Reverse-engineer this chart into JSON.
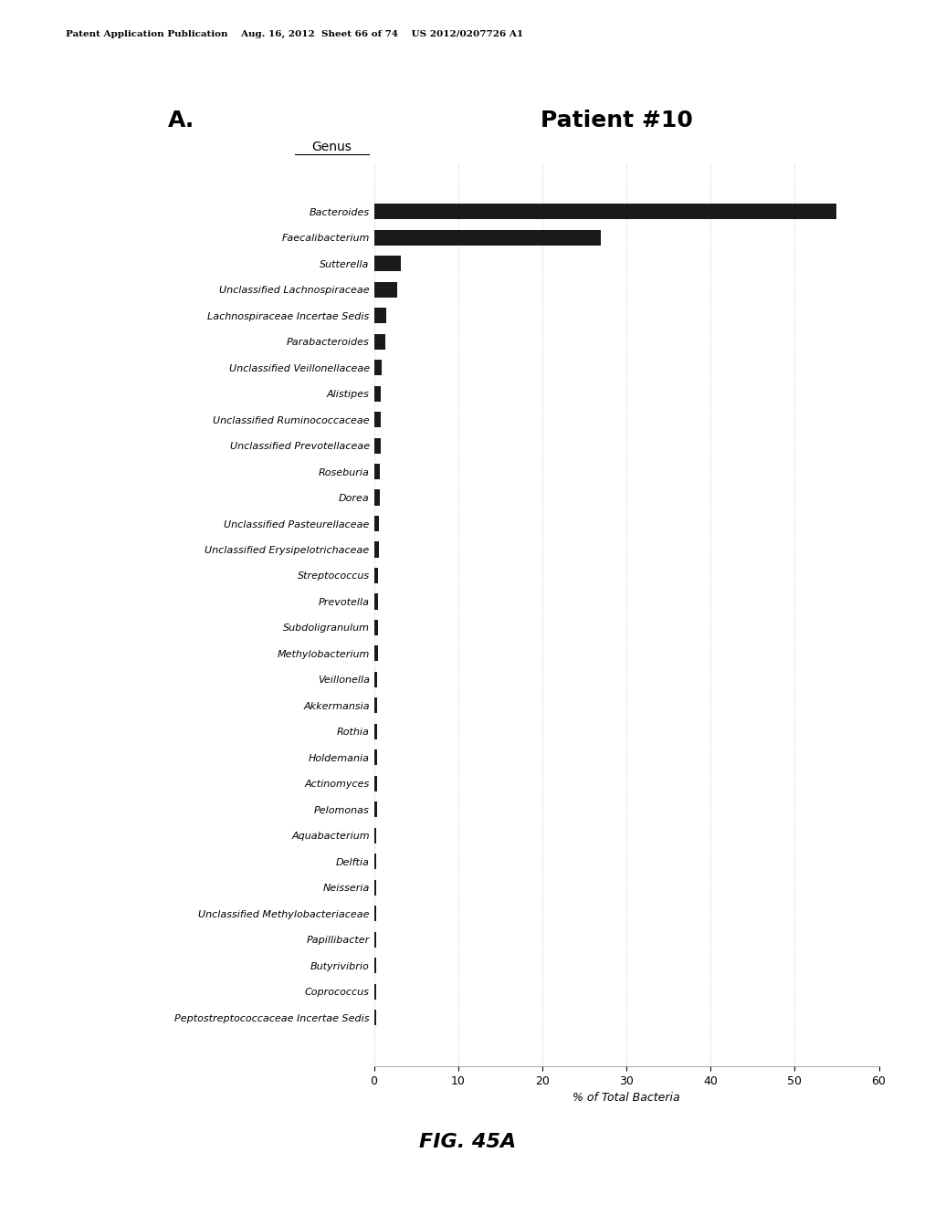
{
  "title": "Patient #10",
  "subtitle_A": "A.",
  "axis_label": "Genus",
  "xlabel": "% of Total Bacteria",
  "fig_label": "FIG. 45A",
  "header_text": "Patent Application Publication    Aug. 16, 2012  Sheet 66 of 74    US 2012/0207726 A1",
  "xlim": [
    0,
    60
  ],
  "xticks": [
    0,
    10,
    20,
    30,
    40,
    50,
    60
  ],
  "bar_color": "#1a1a1a",
  "categories": [
    "Bacteroides",
    "Faecalibacterium",
    "Sutterella",
    "Unclassified Lachnospiraceae",
    "Lachnospiraceae Incertae Sedis",
    "Parabacteroides",
    "Unclassified Veillonellaceae",
    "Alistipes",
    "Unclassified Ruminococcaceae",
    "Unclassified Prevotellaceae",
    "Roseburia",
    "Dorea",
    "Unclassified Pasteurellaceae",
    "Unclassified Erysipelotrichaceae",
    "Streptococcus",
    "Prevotella",
    "Subdoligranulum",
    "Methylobacterium",
    "Veillonella",
    "Akkermansia",
    "Rothia",
    "Holdemania",
    "Actinomyces",
    "Pelomonas",
    "Aquabacterium",
    "Delftia",
    "Neisseria",
    "Unclassified Methylobacteriaceae",
    "Papillibacter",
    "Butyrivibrio",
    "Coprococcus",
    "Peptostreptococcaceae Incertae Sedis"
  ],
  "values": [
    55.0,
    27.0,
    3.2,
    2.8,
    1.5,
    1.3,
    0.9,
    0.85,
    0.8,
    0.75,
    0.7,
    0.65,
    0.6,
    0.55,
    0.5,
    0.48,
    0.46,
    0.44,
    0.42,
    0.4,
    0.38,
    0.36,
    0.34,
    0.32,
    0.3,
    0.28,
    0.26,
    0.25,
    0.24,
    0.23,
    0.22,
    0.21
  ],
  "background_color": "#ffffff"
}
